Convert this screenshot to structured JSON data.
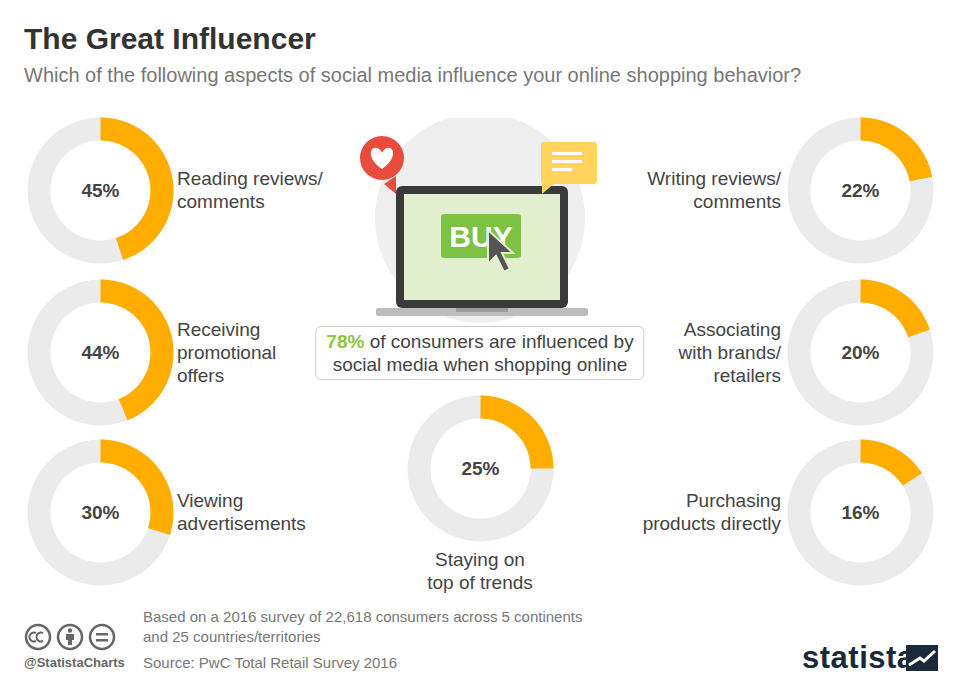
{
  "chart_data": {
    "type": "donut",
    "title": "The Great Influencer",
    "subtitle": "Which of the following aspects of social media influence your online shopping behavior?",
    "categories": [
      "Reading reviews/\ncomments",
      "Receiving\npromotional\noffers",
      "Viewing\nadvertisements",
      "Staying on\ntop of trends",
      "Writing reviews/\ncomments",
      "Associating\nwith brands/\nretailers",
      "Purchasing\nproducts directly"
    ],
    "values": [
      45,
      44,
      30,
      25,
      22,
      20,
      16
    ],
    "value_labels": [
      "45%",
      "44%",
      "30%",
      "25%",
      "22%",
      "20%",
      "16%"
    ],
    "data_labels": true,
    "color": "#ffad00",
    "annotation": {
      "value": 78,
      "value_label": "78%",
      "text": [
        "of consumers are influenced by",
        "social media when shopping online"
      ],
      "color": "#8dc63f"
    },
    "icon_text": "BUY",
    "note": "Based on a 2016 survey of 22,618 consumers across 5 continents\nand 25 countries/territories",
    "source": "Source: PwC Total Retail Survey 2016",
    "credit": "@StatistaCharts",
    "brand": "statista"
  }
}
